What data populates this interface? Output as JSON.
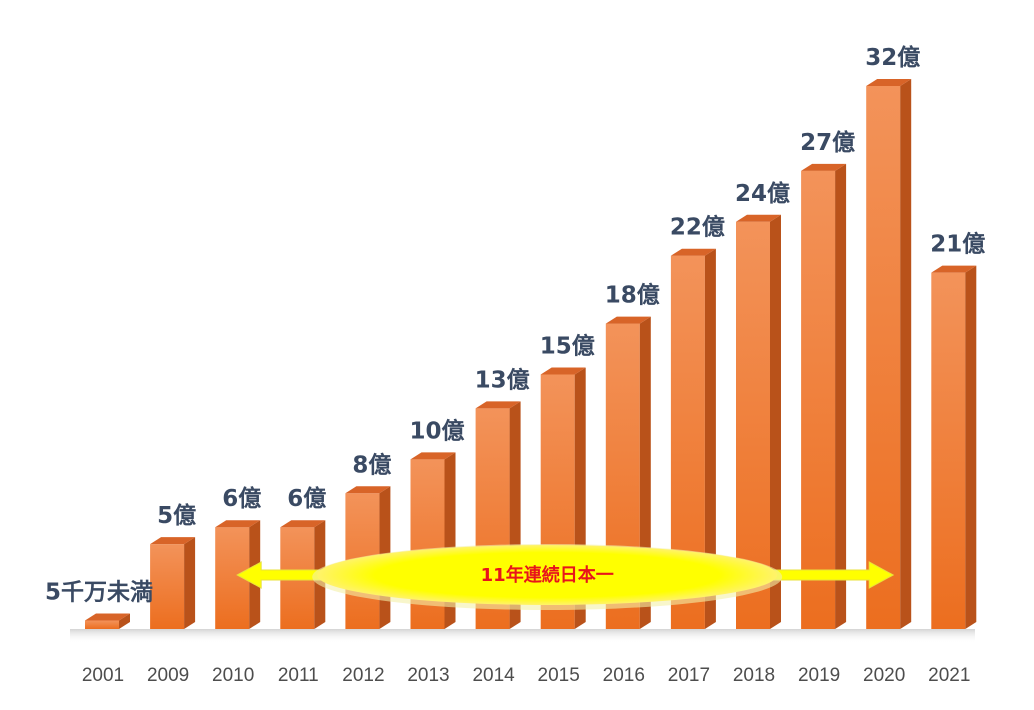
{
  "chart_data": {
    "type": "bar",
    "categories": [
      "2001",
      "2009",
      "2010",
      "2011",
      "2012",
      "2013",
      "2014",
      "2015",
      "2016",
      "2017",
      "2018",
      "2019",
      "2020",
      "2021"
    ],
    "values": [
      0.5,
      5,
      6,
      6,
      8,
      10,
      13,
      15,
      18,
      22,
      24,
      27,
      32,
      21
    ],
    "data_labels": [
      "5千万未満",
      "5億",
      "6億",
      "6億",
      "8億",
      "10億",
      "13億",
      "15億",
      "18億",
      "22億",
      "24億",
      "27億",
      "32億",
      "21億"
    ],
    "annotation": {
      "text": "11年連続日本一",
      "from_category": "2010",
      "to_category": "2020"
    },
    "ylim": [
      0,
      32
    ],
    "grid": false,
    "legend": "none"
  },
  "colors": {
    "bar_front": "#ec6e1f",
    "bar_light": "#f3935a",
    "bar_side": "#b9521a",
    "bar_top": "#d86428",
    "label": "#3a4a63",
    "axis_text": "#4d4d4d",
    "banner_fill": "#ffff00",
    "banner_text": "#e8141b"
  }
}
